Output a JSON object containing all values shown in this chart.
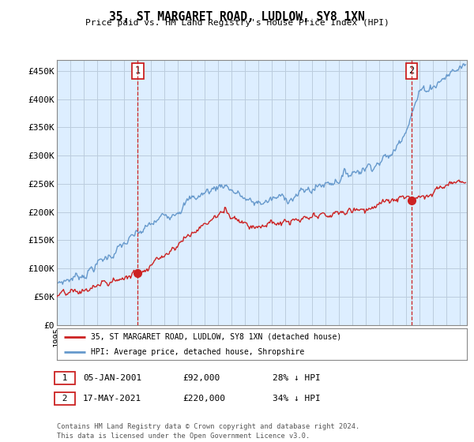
{
  "title": "35, ST MARGARET ROAD, LUDLOW, SY8 1XN",
  "subtitle": "Price paid vs. HM Land Registry's House Price Index (HPI)",
  "ylabel_ticks": [
    "£0",
    "£50K",
    "£100K",
    "£150K",
    "£200K",
    "£250K",
    "£300K",
    "£350K",
    "£400K",
    "£450K"
  ],
  "ytick_values": [
    0,
    50000,
    100000,
    150000,
    200000,
    250000,
    300000,
    350000,
    400000,
    450000
  ],
  "ylim": [
    0,
    470000
  ],
  "xlim_start": 1995.0,
  "xlim_end": 2025.5,
  "hpi_color": "#6699cc",
  "price_color": "#cc2222",
  "plot_bg_color": "#ddeeff",
  "marker1_x": 2001.02,
  "marker1_y": 92000,
  "marker2_x": 2021.38,
  "marker2_y": 220000,
  "legend_entry1": "35, ST MARGARET ROAD, LUDLOW, SY8 1XN (detached house)",
  "legend_entry2": "HPI: Average price, detached house, Shropshire",
  "note1_date": "05-JAN-2001",
  "note1_price": "£92,000",
  "note1_pct": "28% ↓ HPI",
  "note2_date": "17-MAY-2021",
  "note2_price": "£220,000",
  "note2_pct": "34% ↓ HPI",
  "footer": "Contains HM Land Registry data © Crown copyright and database right 2024.\nThis data is licensed under the Open Government Licence v3.0.",
  "background_color": "#ffffff",
  "grid_color": "#bbccdd"
}
